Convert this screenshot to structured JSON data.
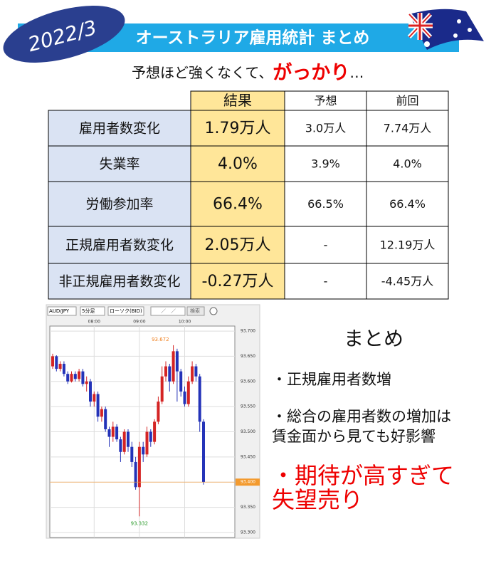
{
  "header": {
    "date": "2022/3",
    "title": "オーストラリア雇用統計 まとめ",
    "subtitle_before": "予想ほど強くなくて、",
    "subtitle_emphasis": "がっかり",
    "subtitle_after": "…"
  },
  "table": {
    "header": [
      "結果",
      "予想",
      "前回"
    ],
    "rows": [
      [
        "雇用者数変化",
        "1.79万人",
        "3.0万人",
        "7.74万人"
      ],
      [
        "失業率",
        "4.0%",
        "3.9%",
        "4.0%"
      ],
      [
        "労働参加率",
        "66.4%",
        "66.5%",
        "66.4%"
      ],
      [
        "正規雇用者数変化",
        "2.05万人",
        "-",
        "12.19万人"
      ],
      [
        "非正規雇用者数変化",
        "-0.27万人",
        "-",
        "-4.45万人"
      ]
    ]
  },
  "summary": {
    "heading": "まとめ",
    "points": [
      "・正規雇用者数増",
      "・総合の雇用者数の増加は\n賃金面から見ても好影響"
    ],
    "emphasis": "・期待が高すぎて\n失望売り"
  },
  "toolbar": {
    "pair": "AUD/JPY",
    "period": "5分足",
    "style": "ローソク(BID)",
    "date": "／　／",
    "search": "検索"
  },
  "chart_data": {
    "type": "candlestick",
    "up_color": "#d42424",
    "down_color": "#2433b8",
    "xtick_labels": [
      "08:00",
      "09:00",
      "10:00"
    ],
    "ylim": [
      93.29,
      93.71
    ],
    "yticks": [
      {
        "value": 93.3,
        "label": "93.300"
      },
      {
        "value": 93.35,
        "label": "93.350"
      },
      {
        "value": 93.4,
        "label": "93.400"
      },
      {
        "value": 93.45,
        "label": "93.450"
      },
      {
        "value": 93.5,
        "label": "93.500"
      },
      {
        "value": 93.55,
        "label": "93.550"
      },
      {
        "value": 93.6,
        "label": "93.600"
      },
      {
        "value": 93.65,
        "label": "93.650"
      },
      {
        "value": 93.7,
        "label": "93.700"
      }
    ],
    "grid": true,
    "open": [
      93.63,
      93.65,
      93.625,
      93.635,
      93.615,
      93.6,
      93.615,
      93.605,
      93.62,
      93.595,
      93.6,
      93.56,
      93.575,
      93.53,
      93.545,
      93.505,
      93.49,
      93.51,
      93.485,
      93.46,
      93.5,
      93.47,
      93.44,
      93.39,
      93.47,
      93.455,
      93.5,
      93.48,
      93.52,
      93.56,
      93.61,
      93.63,
      93.6,
      93.66,
      93.62,
      93.58,
      93.555,
      93.6,
      93.63,
      93.61,
      93.52
    ],
    "high": [
      93.655,
      93.652,
      93.64,
      93.64,
      93.62,
      93.62,
      93.62,
      93.625,
      93.625,
      93.61,
      93.605,
      93.58,
      93.58,
      93.55,
      93.55,
      93.51,
      93.52,
      93.515,
      93.49,
      93.505,
      93.505,
      93.48,
      93.45,
      93.48,
      93.48,
      93.51,
      93.505,
      93.525,
      93.57,
      93.63,
      93.64,
      93.635,
      93.672,
      93.665,
      93.625,
      93.59,
      93.61,
      93.64,
      93.635,
      93.615,
      93.525
    ],
    "low": [
      93.625,
      93.62,
      93.62,
      93.61,
      93.595,
      93.598,
      93.6,
      93.6,
      93.59,
      93.58,
      93.55,
      93.55,
      93.52,
      93.52,
      93.5,
      93.47,
      93.48,
      93.48,
      93.44,
      93.455,
      93.46,
      93.43,
      93.385,
      93.332,
      93.44,
      93.45,
      93.47,
      93.475,
      93.515,
      93.555,
      93.6,
      93.58,
      93.595,
      93.56,
      93.57,
      93.55,
      93.55,
      93.595,
      93.6,
      93.5,
      93.395
    ],
    "close": [
      93.65,
      93.625,
      93.635,
      93.615,
      93.6,
      93.615,
      93.605,
      93.62,
      93.595,
      93.6,
      93.56,
      93.575,
      93.53,
      93.545,
      93.505,
      93.49,
      93.51,
      93.485,
      93.46,
      93.5,
      93.47,
      93.44,
      93.39,
      93.47,
      93.455,
      93.5,
      93.48,
      93.52,
      93.56,
      93.61,
      93.63,
      93.6,
      93.66,
      93.62,
      93.58,
      93.555,
      93.6,
      93.63,
      93.61,
      93.52,
      93.4
    ],
    "high_label": {
      "value": 93.672,
      "label": "93.672"
    },
    "low_label": {
      "value": 93.332,
      "label": "93.332"
    },
    "current_label": {
      "value": 93.4,
      "label": "93.400"
    }
  }
}
